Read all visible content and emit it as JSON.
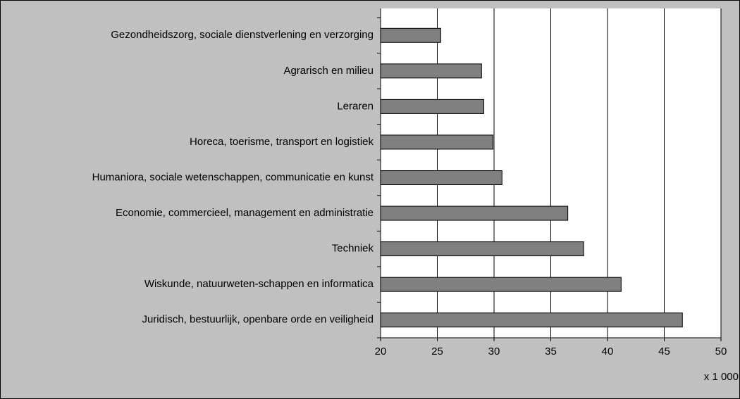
{
  "chart_data": {
    "type": "bar",
    "orientation": "horizontal",
    "categories": [
      "Gezondheidszorg, sociale dienstverlening en verzorging",
      "Agrarisch en milieu",
      "Leraren",
      "Horeca, toerisme, transport en logistiek",
      "Humaniora, sociale wetenschappen, communicatie en kunst",
      "Economie, commercieel, management en administratie",
      "Techniek",
      "Wiskunde, natuurweten-schappen en informatica",
      "Juridisch, bestuurlijk, openbare orde en veiligheid"
    ],
    "values": [
      25.3,
      28.9,
      29.1,
      29.9,
      30.7,
      36.5,
      37.9,
      41.2,
      46.6
    ],
    "color": "#808080",
    "x_axis_label": "x 1 000",
    "xlim": [
      20,
      50
    ],
    "xticks": [
      20,
      25,
      30,
      35,
      40,
      45,
      50
    ],
    "grid": true
  }
}
